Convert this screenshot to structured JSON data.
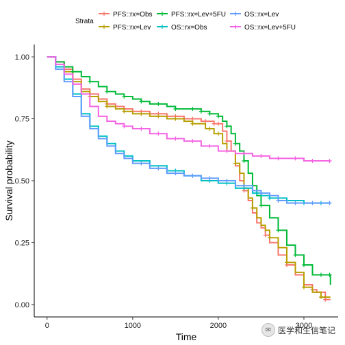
{
  "chart_data": {
    "type": "line",
    "step": true,
    "xlabel": "Time",
    "ylabel": "Survival probability",
    "xlim": [
      -150,
      3400
    ],
    "ylim": [
      -0.05,
      1.05
    ],
    "x_ticks": [
      0,
      1000,
      2000,
      3000
    ],
    "y_ticks": [
      0.0,
      0.25,
      0.5,
      0.75,
      1.0
    ],
    "y_tick_labels": [
      "0.00",
      "0.25",
      "0.50",
      "0.75",
      "1.00"
    ],
    "grid": false,
    "legend": {
      "title": "Strata",
      "placement": "top",
      "entries": [
        "PFS::rx=Obs",
        "PFS::rx=Lev",
        "PFS::rx=Lev+5FU",
        "OS::rx=Obs",
        "OS::rx=Lev",
        "OS::rx=Lev+5FU"
      ]
    },
    "series": [
      {
        "name": "PFS::rx=Obs",
        "color": "#F8766D",
        "points": [
          [
            0,
            1.0
          ],
          [
            100,
            0.98
          ],
          [
            200,
            0.95
          ],
          [
            300,
            0.91
          ],
          [
            400,
            0.87
          ],
          [
            500,
            0.85
          ],
          [
            600,
            0.83
          ],
          [
            700,
            0.81
          ],
          [
            800,
            0.8
          ],
          [
            900,
            0.79
          ],
          [
            1000,
            0.78
          ],
          [
            1200,
            0.77
          ],
          [
            1400,
            0.76
          ],
          [
            1600,
            0.75
          ],
          [
            1800,
            0.74
          ],
          [
            1950,
            0.73
          ],
          [
            2050,
            0.7
          ],
          [
            2100,
            0.66
          ],
          [
            2150,
            0.62
          ],
          [
            2200,
            0.56
          ],
          [
            2250,
            0.5
          ],
          [
            2300,
            0.46
          ],
          [
            2350,
            0.42
          ],
          [
            2400,
            0.37
          ],
          [
            2450,
            0.33
          ],
          [
            2500,
            0.31
          ],
          [
            2550,
            0.28
          ],
          [
            2600,
            0.25
          ],
          [
            2700,
            0.2
          ],
          [
            2800,
            0.16
          ],
          [
            2900,
            0.12
          ],
          [
            3000,
            0.08
          ],
          [
            3100,
            0.06
          ],
          [
            3150,
            0.05
          ],
          [
            3250,
            0.02
          ],
          [
            3310,
            0.02
          ]
        ],
        "censor_x": [
          700,
          900,
          1000,
          1100,
          1300,
          1500,
          1700,
          1850,
          1950,
          2000,
          2100,
          2300,
          2550,
          2800,
          3100,
          3250
        ]
      },
      {
        "name": "PFS::rx=Lev",
        "color": "#B79F00",
        "points": [
          [
            0,
            1.0
          ],
          [
            100,
            0.97
          ],
          [
            200,
            0.94
          ],
          [
            300,
            0.9
          ],
          [
            400,
            0.86
          ],
          [
            500,
            0.84
          ],
          [
            600,
            0.82
          ],
          [
            700,
            0.8
          ],
          [
            800,
            0.79
          ],
          [
            900,
            0.78
          ],
          [
            1000,
            0.77
          ],
          [
            1200,
            0.76
          ],
          [
            1400,
            0.75
          ],
          [
            1600,
            0.74
          ],
          [
            1700,
            0.73
          ],
          [
            1850,
            0.71
          ],
          [
            1950,
            0.69
          ],
          [
            2050,
            0.65
          ],
          [
            2100,
            0.62
          ],
          [
            2200,
            0.57
          ],
          [
            2250,
            0.53
          ],
          [
            2300,
            0.47
          ],
          [
            2350,
            0.43
          ],
          [
            2400,
            0.39
          ],
          [
            2450,
            0.35
          ],
          [
            2500,
            0.32
          ],
          [
            2550,
            0.3
          ],
          [
            2600,
            0.27
          ],
          [
            2700,
            0.23
          ],
          [
            2800,
            0.17
          ],
          [
            2900,
            0.13
          ],
          [
            3000,
            0.07
          ],
          [
            3100,
            0.05
          ],
          [
            3200,
            0.03
          ],
          [
            3310,
            0.03
          ]
        ],
        "censor_x": [
          500,
          700,
          900,
          1100,
          1300,
          1500,
          1700,
          1900,
          2000,
          2200,
          2400,
          2600,
          2800,
          3000,
          3200
        ]
      },
      {
        "name": "PFS::rx=Lev+5FU",
        "color": "#00BA38",
        "points": [
          [
            0,
            1.0
          ],
          [
            100,
            0.98
          ],
          [
            200,
            0.96
          ],
          [
            300,
            0.94
          ],
          [
            400,
            0.92
          ],
          [
            500,
            0.9
          ],
          [
            600,
            0.88
          ],
          [
            700,
            0.86
          ],
          [
            800,
            0.85
          ],
          [
            900,
            0.84
          ],
          [
            1000,
            0.83
          ],
          [
            1100,
            0.82
          ],
          [
            1200,
            0.81
          ],
          [
            1400,
            0.8
          ],
          [
            1500,
            0.79
          ],
          [
            1600,
            0.79
          ],
          [
            1800,
            0.78
          ],
          [
            1900,
            0.77
          ],
          [
            2000,
            0.76
          ],
          [
            2050,
            0.74
          ],
          [
            2100,
            0.72
          ],
          [
            2150,
            0.69
          ],
          [
            2200,
            0.65
          ],
          [
            2250,
            0.62
          ],
          [
            2300,
            0.58
          ],
          [
            2350,
            0.53
          ],
          [
            2400,
            0.48
          ],
          [
            2450,
            0.44
          ],
          [
            2500,
            0.4
          ],
          [
            2600,
            0.35
          ],
          [
            2700,
            0.3
          ],
          [
            2800,
            0.24
          ],
          [
            2900,
            0.2
          ],
          [
            3000,
            0.16
          ],
          [
            3100,
            0.12
          ],
          [
            3200,
            0.12
          ],
          [
            3310,
            0.08
          ]
        ],
        "censor_x": [
          300,
          500,
          700,
          900,
          1100,
          1300,
          1500,
          1700,
          1800,
          1900,
          2000,
          2100,
          2200,
          2300,
          2500,
          2700,
          2900,
          3000,
          3200,
          3300
        ]
      },
      {
        "name": "OS::rx=Obs",
        "color": "#00BFC4",
        "points": [
          [
            0,
            1.0
          ],
          [
            100,
            0.96
          ],
          [
            200,
            0.91
          ],
          [
            300,
            0.85
          ],
          [
            400,
            0.77
          ],
          [
            500,
            0.72
          ],
          [
            600,
            0.68
          ],
          [
            700,
            0.65
          ],
          [
            800,
            0.62
          ],
          [
            900,
            0.6
          ],
          [
            1000,
            0.58
          ],
          [
            1200,
            0.56
          ],
          [
            1400,
            0.54
          ],
          [
            1600,
            0.52
          ],
          [
            1800,
            0.5
          ],
          [
            2000,
            0.49
          ],
          [
            2200,
            0.47
          ],
          [
            2400,
            0.45
          ],
          [
            2500,
            0.44
          ],
          [
            2600,
            0.43
          ],
          [
            2800,
            0.42
          ],
          [
            3000,
            0.41
          ],
          [
            3310,
            0.41
          ]
        ],
        "censor_x": [
          1500,
          1700,
          1900,
          2100,
          2300,
          2450,
          2600,
          2800,
          3000,
          3200
        ]
      },
      {
        "name": "OS::rx=Lev",
        "color": "#619CFF",
        "points": [
          [
            0,
            1.0
          ],
          [
            100,
            0.95
          ],
          [
            200,
            0.9
          ],
          [
            300,
            0.84
          ],
          [
            400,
            0.76
          ],
          [
            500,
            0.71
          ],
          [
            600,
            0.67
          ],
          [
            700,
            0.64
          ],
          [
            800,
            0.61
          ],
          [
            900,
            0.59
          ],
          [
            1000,
            0.57
          ],
          [
            1200,
            0.55
          ],
          [
            1400,
            0.53
          ],
          [
            1600,
            0.52
          ],
          [
            1800,
            0.51
          ],
          [
            2000,
            0.5
          ],
          [
            2200,
            0.48
          ],
          [
            2400,
            0.46
          ],
          [
            2500,
            0.45
          ],
          [
            2600,
            0.44
          ],
          [
            2700,
            0.42
          ],
          [
            2800,
            0.41
          ],
          [
            3000,
            0.41
          ],
          [
            3310,
            0.41
          ]
        ],
        "censor_x": [
          1100,
          1300,
          1500,
          1700,
          1900,
          2100,
          2300,
          2500,
          2700,
          2900,
          3100,
          3300
        ]
      },
      {
        "name": "OS::rx=Lev+5FU",
        "color": "#F564E3",
        "points": [
          [
            0,
            1.0
          ],
          [
            100,
            0.97
          ],
          [
            200,
            0.93
          ],
          [
            300,
            0.89
          ],
          [
            400,
            0.85
          ],
          [
            500,
            0.8
          ],
          [
            600,
            0.76
          ],
          [
            700,
            0.74
          ],
          [
            800,
            0.73
          ],
          [
            900,
            0.72
          ],
          [
            1000,
            0.71
          ],
          [
            1200,
            0.69
          ],
          [
            1400,
            0.67
          ],
          [
            1600,
            0.66
          ],
          [
            1800,
            0.64
          ],
          [
            2000,
            0.62
          ],
          [
            2200,
            0.61
          ],
          [
            2400,
            0.6
          ],
          [
            2600,
            0.59
          ],
          [
            2800,
            0.59
          ],
          [
            3000,
            0.58
          ],
          [
            3310,
            0.58
          ]
        ],
        "censor_x": [
          900,
          1100,
          1300,
          1500,
          1700,
          1900,
          2100,
          2300,
          2500,
          2700,
          2900,
          3100,
          3300
        ]
      }
    ]
  },
  "watermark": {
    "text": "医学和生信笔记"
  }
}
